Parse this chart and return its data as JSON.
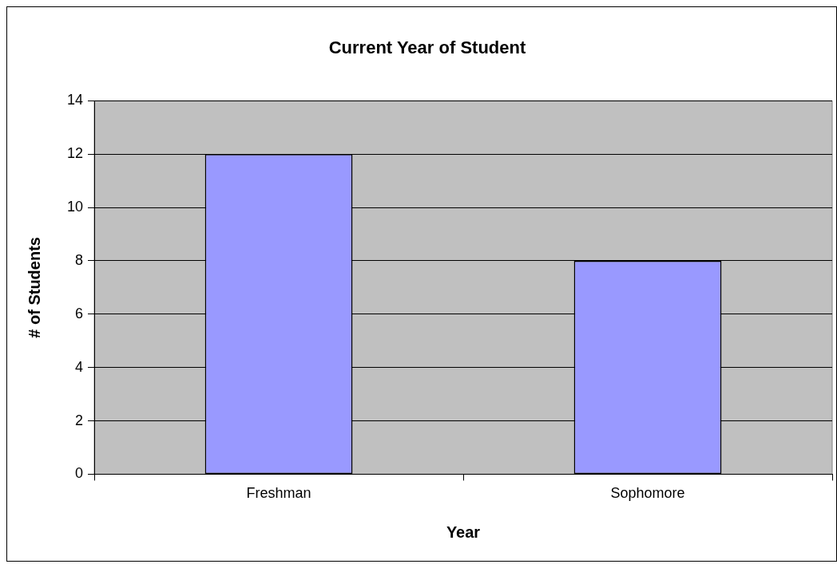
{
  "chart_data": {
    "type": "bar",
    "title": "Current Year of Student",
    "xlabel": "Year",
    "ylabel": "# of Students",
    "categories": [
      "Freshman",
      "Sophomore"
    ],
    "series": [
      {
        "color": "#9999ff",
        "values": [
          12,
          8
        ]
      }
    ],
    "ylim": [
      0,
      14
    ],
    "yticks": [
      0,
      2,
      4,
      6,
      8,
      10,
      12,
      14
    ],
    "grid": "y",
    "legend": false
  }
}
